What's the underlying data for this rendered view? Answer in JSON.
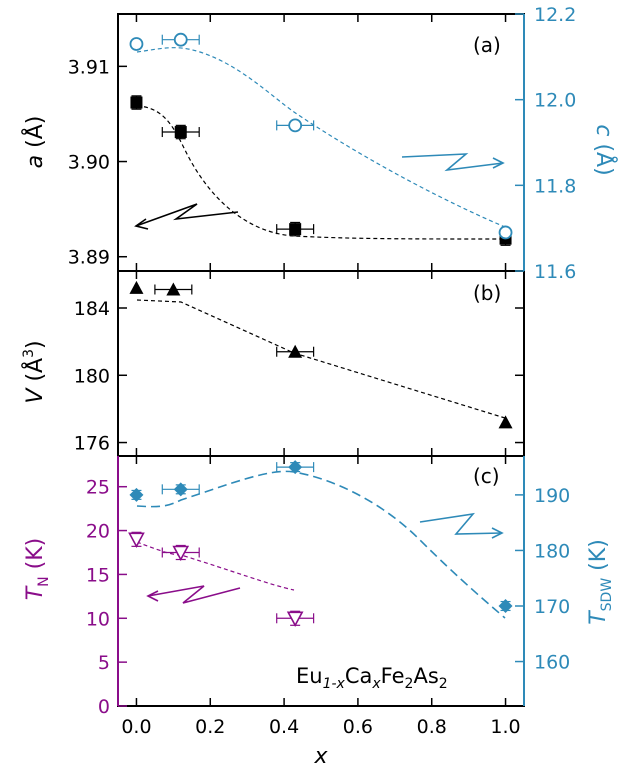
{
  "figure": {
    "x_label": "x",
    "x_ticks": [
      "0.0",
      "0.2",
      "0.4",
      "0.6",
      "0.8",
      "1.0"
    ],
    "compound": {
      "el1": "Eu",
      "sub1": "1-x",
      "el2": "Ca",
      "sub2": "x",
      "el3": "Fe",
      "sub3": "2",
      "el4": "As",
      "sub4": "2"
    }
  },
  "colors": {
    "black": "#000000",
    "blue": "#2e8ab8",
    "purple": "#8a0d8a"
  },
  "chart_data": [
    {
      "type": "scatter",
      "panel_label": "(a)",
      "x": [
        0.0,
        0.12,
        0.43,
        1.0
      ],
      "xlim": [
        -0.05,
        1.05
      ],
      "left_axis": {
        "label_symbol": "a",
        "label_unit": "(Å)",
        "ticks": [
          "3.89",
          "3.90",
          "3.91"
        ],
        "ylim": [
          3.8885,
          3.9155
        ]
      },
      "right_axis": {
        "label_symbol": "c",
        "label_unit": "(Å)",
        "ticks": [
          "11.6",
          "11.8",
          "12.0",
          "12.2"
        ],
        "ylim": [
          11.6,
          12.2
        ]
      },
      "series": [
        {
          "axis": "left",
          "marker": "filled-square",
          "color": "black",
          "values": [
            3.9062,
            3.9031,
            3.8929,
            3.8919
          ],
          "yerr": 0.0007,
          "xerr": [
            0.0,
            0.05,
            0.05,
            0.0
          ]
        },
        {
          "axis": "right",
          "marker": "open-circle",
          "color": "blue",
          "values": [
            12.13,
            12.14,
            11.94,
            11.69
          ],
          "yerr": 0.008,
          "xerr": [
            0.0,
            0.05,
            0.05,
            0.0
          ]
        }
      ]
    },
    {
      "type": "scatter",
      "panel_label": "(b)",
      "x": [
        0.0,
        0.1,
        0.43,
        1.0
      ],
      "xlim": [
        -0.05,
        1.05
      ],
      "left_axis": {
        "label_symbol": "V",
        "label_unit": "(Å",
        "label_sup": "3",
        "label_close": ")",
        "ticks": [
          "176",
          "180",
          "184"
        ],
        "ylim": [
          175.2,
          186.2
        ]
      },
      "series": [
        {
          "axis": "left",
          "marker": "filled-triangle",
          "color": "black",
          "values": [
            185.2,
            185.1,
            181.4,
            177.2
          ],
          "yerr": 0.0,
          "xerr": [
            0.0,
            0.05,
            0.05,
            0.0
          ]
        }
      ]
    },
    {
      "type": "scatter",
      "panel_label": "(c)",
      "x": [
        0.0,
        0.12,
        0.43,
        1.0
      ],
      "xlim": [
        -0.05,
        1.05
      ],
      "left_axis": {
        "label_symbol": "T",
        "label_sub": "N",
        "label_unit": "(K)",
        "ticks": [
          "0",
          "5",
          "10",
          "15",
          "20",
          "25"
        ],
        "ylim": [
          0,
          28.5
        ]
      },
      "right_axis": {
        "label_symbol": "T",
        "label_sub": "SDW",
        "label_unit": "(K)",
        "ticks": [
          "160",
          "170",
          "180",
          "190"
        ],
        "ylim": [
          152,
          197
        ]
      },
      "series": [
        {
          "axis": "left",
          "marker": "open-triangle-down",
          "color": "purple",
          "values": [
            19.0,
            17.5,
            10.0
          ],
          "x": [
            0.0,
            0.12,
            0.43
          ],
          "yerr": 0.8,
          "xerr": [
            0.0,
            0.05,
            0.05
          ]
        },
        {
          "axis": "right",
          "marker": "filled-diamond",
          "color": "blue",
          "values": [
            190,
            191,
            195,
            170
          ],
          "yerr": 0.8,
          "xerr": [
            0.0,
            0.05,
            0.05,
            0.0
          ]
        }
      ]
    }
  ]
}
